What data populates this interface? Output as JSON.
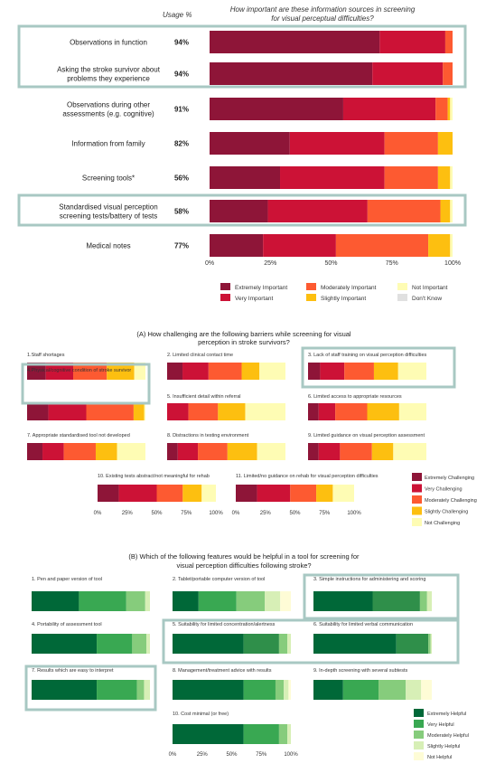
{
  "colors": {
    "importance": [
      "#8e1538",
      "#cc1236",
      "#fd5a31",
      "#fdbf10",
      "#fefcb4",
      "#e0e0e0"
    ],
    "challenge": [
      "#8e1538",
      "#cc1236",
      "#fd5a31",
      "#fdbf10",
      "#fefcb4"
    ],
    "helpful": [
      "#006838",
      "#2f8f4a",
      "#39a852",
      "#86cc7c",
      "#d7efb6",
      "#fefcd6"
    ],
    "highlight": "#a8c8c3"
  },
  "chart_data": [
    {
      "type": "bar",
      "orientation": "horizontal",
      "stacked": true,
      "usage_header": "Usage %",
      "title": "How important are these information sources in screening for visual perceptual difficulties?",
      "categories": [
        [
          "Observations in function"
        ],
        [
          "Asking the stroke survivor about",
          "problems they experience"
        ],
        [
          "Observations during other",
          "assessments (e.g. cognitive)"
        ],
        [
          "Information from family"
        ],
        [
          "Screening tools*"
        ],
        [
          "Standardised visual perception",
          "screening tests/battery of tests"
        ],
        [
          "Medical notes"
        ]
      ],
      "usage": [
        "94%",
        "94%",
        "91%",
        "82%",
        "56%",
        "58%",
        "77%"
      ],
      "highlighted": [
        true,
        true,
        false,
        false,
        false,
        true,
        false
      ],
      "series": [
        {
          "name": "Extremely Important",
          "values": [
            70,
            67,
            55,
            33,
            29,
            24,
            22
          ]
        },
        {
          "name": "Very Important",
          "values": [
            27,
            29,
            38,
            39,
            43,
            41,
            30
          ]
        },
        {
          "name": "Moderately Important",
          "values": [
            3,
            4,
            5,
            22,
            22,
            30,
            38
          ]
        },
        {
          "name": "Slightly Important",
          "values": [
            0,
            0,
            1,
            6,
            5,
            4,
            9
          ]
        },
        {
          "name": "Not Important",
          "values": [
            0,
            0,
            1,
            0,
            1,
            1,
            1
          ]
        },
        {
          "name": "Don't Know",
          "values": [
            0,
            0,
            0,
            0,
            0,
            0,
            0
          ]
        }
      ],
      "xlim": [
        0,
        100
      ],
      "xticks": [
        "0%",
        "25%",
        "50%",
        "75%",
        "100%"
      ],
      "legend": [
        "Extremely Important",
        "Moderately Important",
        "Not Important",
        "Very Important",
        "Slightly Important",
        "Don't Know"
      ]
    },
    {
      "type": "bar",
      "orientation": "horizontal",
      "stacked": true,
      "title": "(A) How challenging are the following barriers while screening for visual perception in stroke survivors?",
      "panels": [
        {
          "label": "1.Staff shortages",
          "values": [
            15,
            22,
            27,
            22,
            9
          ],
          "highlighted": false
        },
        {
          "label": "2. Limited clinical contact time",
          "values": [
            13,
            22,
            28,
            15,
            22
          ],
          "highlighted": false
        },
        {
          "label": "3. Lack of staff training on visual perception difficulties",
          "values": [
            9,
            18,
            22,
            18,
            21
          ],
          "highlighted": true
        },
        {
          "label": "4.Physical/cognitive condition of stroke survivor",
          "values": [
            18,
            32,
            40,
            9,
            1
          ],
          "highlighted": true
        },
        {
          "label": "5. Insufficient detail within referral",
          "values": [
            0,
            18,
            25,
            23,
            34
          ],
          "highlighted": false
        },
        {
          "label": "6. Limited access to appropriate resources",
          "values": [
            9,
            14,
            27,
            27,
            23
          ],
          "highlighted": false
        },
        {
          "label": "7. Appropriate standardised tool not developed",
          "values": [
            13,
            18,
            27,
            18,
            24
          ],
          "highlighted": false
        },
        {
          "label": "8. Distractions in testing environment",
          "values": [
            9,
            17,
            25,
            25,
            24
          ],
          "highlighted": false
        },
        {
          "label": "9. Limited guidance on visual perception assessment",
          "values": [
            9,
            18,
            27,
            18,
            28
          ],
          "highlighted": false
        },
        {
          "label": "10. Existing tests abstract/not meaningful for rehab",
          "values": [
            18,
            32,
            22,
            16,
            12
          ],
          "highlighted": false
        },
        {
          "label": "11. Limited/no guidance on rehab for visual perception difficulties",
          "values": [
            18,
            28,
            22,
            14,
            18
          ],
          "highlighted": false
        }
      ],
      "series_names": [
        "Extremely Challenging",
        "Very Challenging",
        "Moderately Challenging",
        "Slightly Challenging",
        "Not Challenging"
      ],
      "xlim": [
        0,
        100
      ],
      "xticks": [
        "0%",
        "25%",
        "50%",
        "75%",
        "100%"
      ]
    },
    {
      "type": "bar",
      "orientation": "horizontal",
      "stacked": true,
      "title": "(B) Which of the following features would be helpful in a tool for screening for visual perception difficulties following stroke?",
      "panels": [
        {
          "label": "1. Pen and paper version of tool",
          "values": [
            40,
            0,
            40,
            16,
            4,
            0
          ],
          "highlighted": false
        },
        {
          "label": "2. Tablet/portable computer version of tool",
          "values": [
            22,
            0,
            32,
            24,
            13,
            9
          ],
          "highlighted": false
        },
        {
          "label": "3. Simple instructions for administering and scoring",
          "values": [
            50,
            40,
            0,
            6,
            4,
            0
          ],
          "highlighted": true
        },
        {
          "label": "4. Portability of assessment tool",
          "values": [
            55,
            0,
            30,
            12,
            3,
            0
          ],
          "highlighted": false
        },
        {
          "label": "5. Suitability for limited concentration/alertness",
          "values": [
            60,
            30,
            0,
            7,
            3,
            0
          ],
          "highlighted": true
        },
        {
          "label": "6. Suitability for limited verbal communication",
          "values": [
            70,
            27,
            0,
            2,
            1,
            0
          ],
          "highlighted": true
        },
        {
          "label": "7. Results which are easy to interpret",
          "values": [
            55,
            0,
            34,
            6,
            5,
            0
          ],
          "highlighted": true
        },
        {
          "label": "8. Management/treatment advice with results",
          "values": [
            60,
            0,
            27,
            7,
            4,
            2
          ],
          "highlighted": false
        },
        {
          "label": "9. In-depth screening with several subtests",
          "values": [
            25,
            0,
            30,
            23,
            13,
            9
          ],
          "highlighted": false
        },
        {
          "label": "10. Cost minimal (or free)",
          "values": [
            60,
            0,
            30,
            7,
            3,
            0
          ],
          "highlighted": false
        }
      ],
      "series_names": [
        "Extremely Helpful",
        "",
        "Very Helpful",
        "Moderately Helpful",
        "Slightly Helpful",
        "Not Helpful"
      ],
      "xlim": [
        0,
        100
      ],
      "xticks": [
        "0%",
        "25%",
        "50%",
        "75%",
        "100%"
      ]
    }
  ]
}
